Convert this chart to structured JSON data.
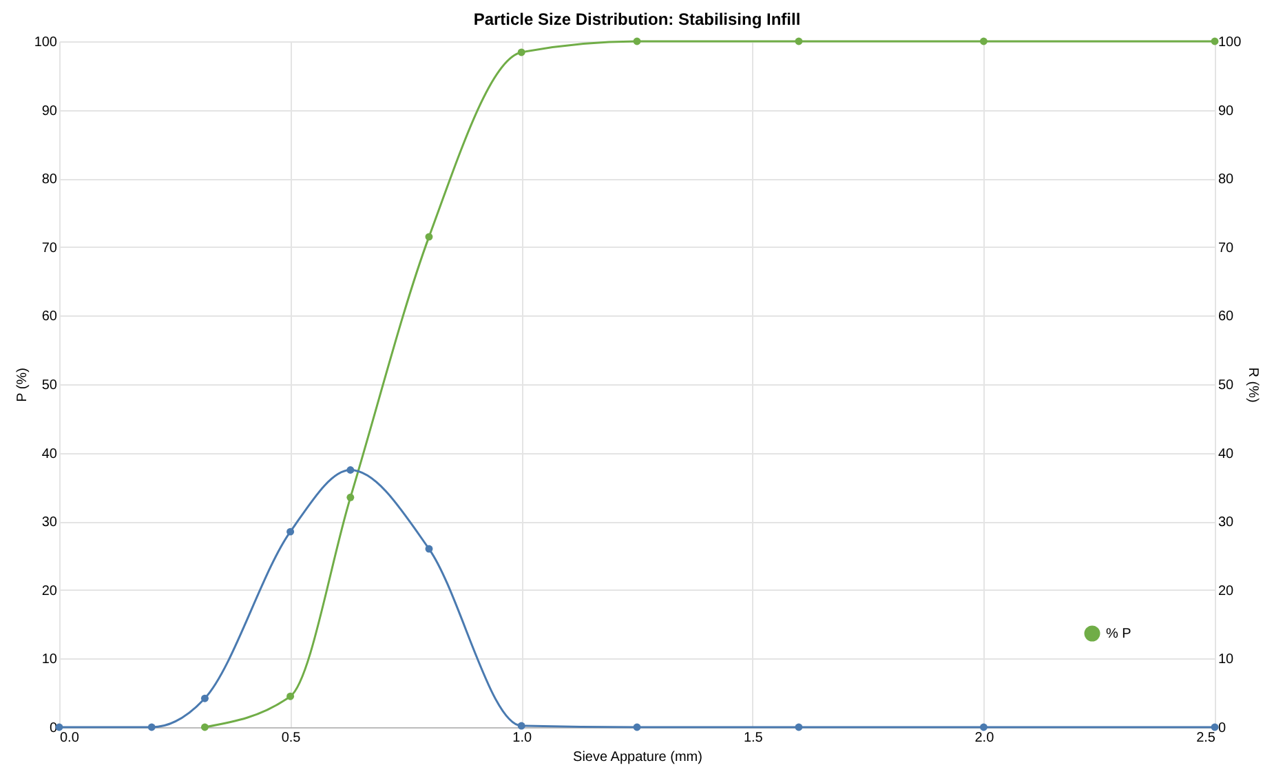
{
  "chart_data": {
    "type": "line",
    "title": "Particle Size Distribution: Stabilising Infill",
    "xlabel": "Sieve Appature (mm)",
    "ylabel": "P (%)",
    "y2label": "R (%)",
    "xlim": [
      0,
      2.5
    ],
    "xticks": [
      {
        "value": 0,
        "label": "0.0"
      },
      0.5,
      {
        "value": 1,
        "label": "1.0"
      },
      1.5,
      {
        "value": 2,
        "label": "2.0"
      },
      2.5
    ],
    "ylim": [
      0,
      100
    ],
    "yticks": [
      0,
      10,
      20,
      30,
      40,
      50,
      60,
      70,
      80,
      90,
      100
    ],
    "y2lim": [
      0,
      100
    ],
    "y2ticks": [
      0,
      10,
      20,
      30,
      40,
      50,
      60,
      70,
      80,
      90,
      100
    ],
    "series": [
      {
        "name": "% P",
        "color": "#70ad47",
        "x": [
          0.315,
          0.5,
          0.63,
          0.8,
          1.0,
          1.25,
          1.6,
          2.0,
          2.5
        ],
        "values": [
          0,
          4.5,
          33.5,
          71.5,
          98.4,
          100,
          100,
          100,
          100
        ]
      },
      {
        "color": "#4a7ab0",
        "axis": "y2",
        "x": [
          0,
          0.2,
          0.315,
          0.5,
          0.63,
          0.8,
          1.0,
          1.25,
          1.6,
          2.0,
          2.5
        ],
        "values": [
          0,
          0,
          4.2,
          28.5,
          37.5,
          26,
          0.2,
          0,
          0,
          0,
          0
        ]
      }
    ],
    "grid": true,
    "legend": "bottom right",
    "marker": "circle",
    "line_style": "solid"
  }
}
